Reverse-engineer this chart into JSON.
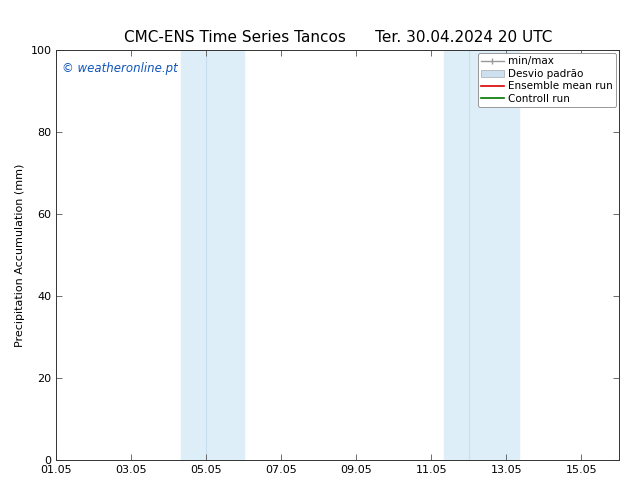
{
  "title_left": "CMC-ENS Time Series Tancos",
  "title_right": "Ter. 30.04.2024 20 UTC",
  "ylabel": "Precipitation Accumulation (mm)",
  "ylim": [
    0,
    100
  ],
  "yticks": [
    0,
    20,
    40,
    60,
    80,
    100
  ],
  "xlim": [
    0,
    15
  ],
  "xtick_labels": [
    "01.05",
    "03.05",
    "05.05",
    "07.05",
    "09.05",
    "11.05",
    "13.05",
    "15.05"
  ],
  "xtick_positions": [
    0,
    2,
    4,
    6,
    8,
    10,
    12,
    14
  ],
  "shaded_bands": [
    {
      "x_start": 3.33,
      "x_end": 4.0,
      "color": "#ddeef8"
    },
    {
      "x_start": 4.0,
      "x_end": 5.0,
      "color": "#ddeef8"
    },
    {
      "x_start": 10.33,
      "x_end": 11.0,
      "color": "#ddeef8"
    },
    {
      "x_start": 11.0,
      "x_end": 12.33,
      "color": "#ddeef8"
    }
  ],
  "watermark_text": "© weatheronline.pt",
  "watermark_color": "#1155bb",
  "legend_items": [
    {
      "label": "min/max",
      "color": "#999999",
      "lw": 1.0,
      "type": "errorbar"
    },
    {
      "label": "Desvio padrão",
      "color": "#cce0f0",
      "lw": 8,
      "type": "band"
    },
    {
      "label": "Ensemble mean run",
      "color": "#dd0000",
      "lw": 1.2,
      "type": "line"
    },
    {
      "label": "Controll run",
      "color": "#007700",
      "lw": 1.2,
      "type": "line"
    }
  ],
  "background_color": "#ffffff",
  "title_fontsize": 11,
  "axis_label_fontsize": 8,
  "tick_fontsize": 8,
  "legend_fontsize": 7.5
}
